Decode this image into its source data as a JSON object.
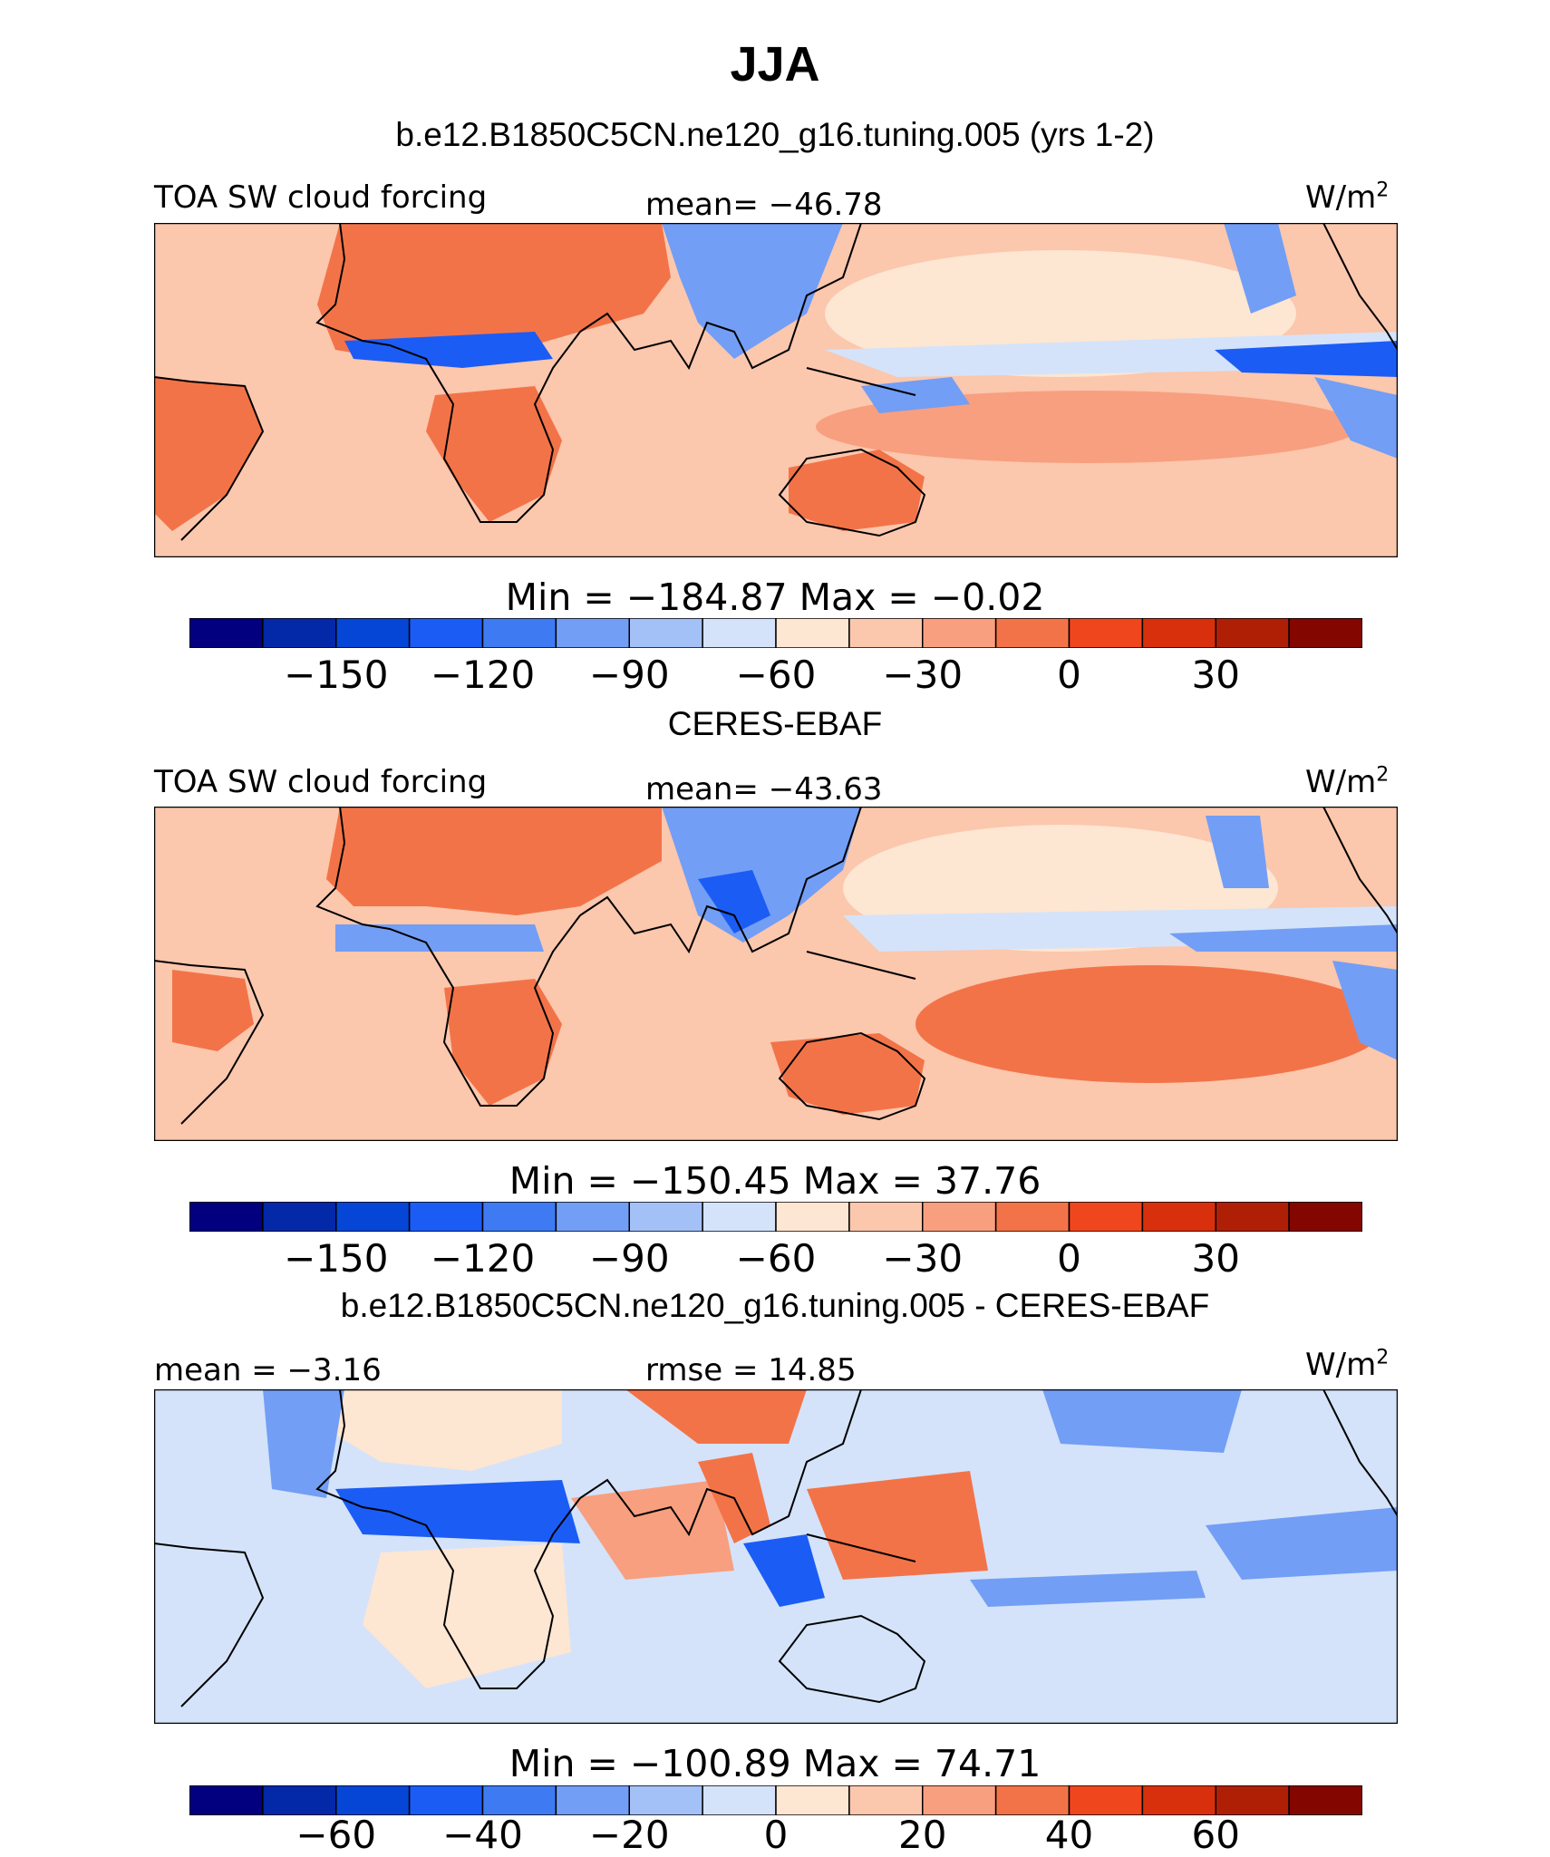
{
  "figure": {
    "title": "JJA",
    "model_subtitle": "b.e12.B1850C5CN.ne120_g16.tuning.005 (yrs 1-2)"
  },
  "panels": [
    {
      "id": "model",
      "left_label": "TOA SW cloud forcing",
      "center_label": "mean= −46.78",
      "units_base": "W/m",
      "units_exp": "2",
      "stats": "Min  =  −184.87  Max  =   −0.02",
      "colorbar": {
        "ticks": [
          "−150",
          "−120",
          "−90",
          "−60",
          "−30",
          "0",
          "30"
        ],
        "colors": [
          "#02007f",
          "#0328a8",
          "#0546d6",
          "#1b5cf5",
          "#3e7af2",
          "#729ef5",
          "#a3c0f7",
          "#d4e3fa",
          "#fde6d2",
          "#fbc7ad",
          "#f89f7f",
          "#f37348",
          "#f0461d",
          "#d8300c",
          "#ae1f06",
          "#830600"
        ]
      }
    },
    {
      "id": "obs",
      "title": "CERES-EBAF",
      "left_label": "TOA SW cloud forcing",
      "center_label": "mean= −43.63",
      "units_base": "W/m",
      "units_exp": "2",
      "stats": "Min  =  −150.45  Max  =   37.76",
      "colorbar": {
        "ticks": [
          "−150",
          "−120",
          "−90",
          "−60",
          "−30",
          "0",
          "30"
        ],
        "colors": [
          "#02007f",
          "#0328a8",
          "#0546d6",
          "#1b5cf5",
          "#3e7af2",
          "#729ef5",
          "#a3c0f7",
          "#d4e3fa",
          "#fde6d2",
          "#fbc7ad",
          "#f89f7f",
          "#f37348",
          "#f0461d",
          "#d8300c",
          "#ae1f06",
          "#830600"
        ]
      }
    },
    {
      "id": "diff",
      "title": "b.e12.B1850C5CN.ne120_g16.tuning.005 - CERES-EBAF",
      "left_label": "mean =   −3.16",
      "center_label": "rmse =   14.85",
      "units_base": "W/m",
      "units_exp": "2",
      "stats": "Min  =  −100.89  Max  =   74.71",
      "colorbar": {
        "ticks": [
          "−60",
          "−40",
          "−20",
          "0",
          "20",
          "40",
          "60"
        ],
        "colors": [
          "#02007f",
          "#0328a8",
          "#0546d6",
          "#1b5cf5",
          "#3e7af2",
          "#729ef5",
          "#a3c0f7",
          "#d4e3fa",
          "#fde6d2",
          "#fbc7ad",
          "#f89f7f",
          "#f37348",
          "#f0461d",
          "#d8300c",
          "#ae1f06",
          "#830600"
        ]
      }
    }
  ],
  "map_colors": {
    "ocean_warm": "#fbc7ad",
    "ocean_pale": "#fde6d2",
    "land_warm": "#f37348",
    "cloudy_light": "#d4e3fa",
    "cloudy_mid": "#729ef5",
    "cloudy_deep": "#1b5cf5",
    "diff_base": "#d4e3fa"
  }
}
